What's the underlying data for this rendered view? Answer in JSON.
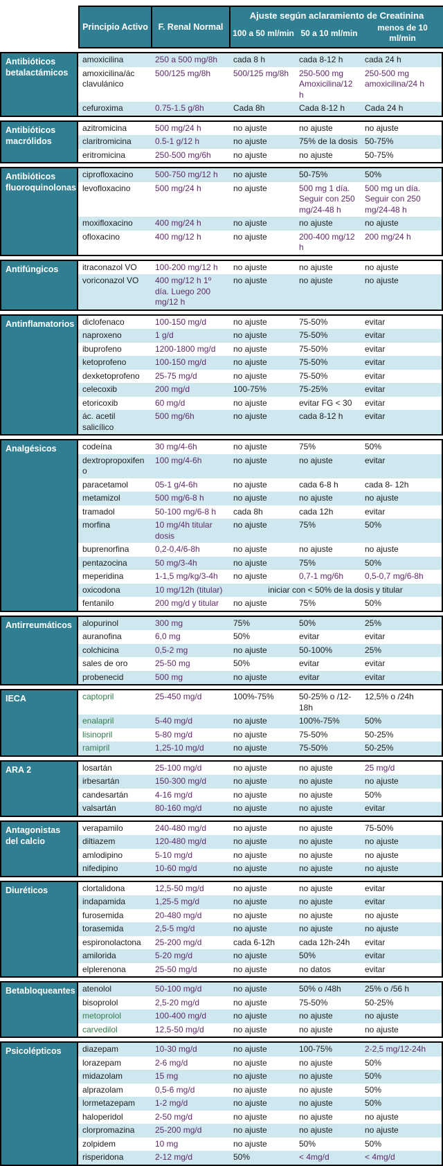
{
  "colors": {
    "teal": "#2f7e91",
    "stripe_blue": "#cfe8f0",
    "dose_text": "#5e2a68",
    "green_text": "#337a4d",
    "border": "#000000"
  },
  "header": {
    "principio": "Principio Activo",
    "renal": "F. Renal Normal",
    "ajuste_title": "Ajuste según aclaramiento de Creatinina",
    "sub_cols": [
      "100 a 50 ml/min",
      "50 a 10 ml/min",
      "menos de 10 ml/min"
    ]
  },
  "groups": [
    {
      "label": "Antibióticos betalactámicos",
      "first_row_shaded": true,
      "rows": [
        {
          "name": "amoxicilina",
          "renal": "250 a 500 mg/8h",
          "c1": "cada 8 h",
          "c2": "cada 8-12 h",
          "c3": "cada 24 h"
        },
        {
          "name": "amoxicilina/ác clavulánico",
          "renal": "500/125 mg/8h",
          "c1": "500/125 mg/8h",
          "c2": "250-500 mg Amoxicilina/12 h",
          "c3": "250-500 mg amoxicilina/24 h"
        },
        {
          "name": "cefuroxima",
          "renal": "0.75-1.5 g/8h",
          "c1": "Cada 8h",
          "c2": "Cada 8-12 h",
          "c3": "Cada 24 h"
        }
      ]
    },
    {
      "label": "Antibióticos macrólidos",
      "first_row_shaded": false,
      "rows": [
        {
          "name": "azitromicina",
          "renal": "500 mg/24 h",
          "c1": "no ajuste",
          "c2": "no ajuste",
          "c3": "no ajuste"
        },
        {
          "name": "claritromicina",
          "renal": "0.5-1 g/12 h",
          "c1": "no ajuste",
          "c2": "75% de la dosis",
          "c3": "50-75%"
        },
        {
          "name": "eritromicina",
          "renal": "250-500 mg/6h",
          "c1": "no ajuste",
          "c2": "no ajuste",
          "c3": "50-75%"
        }
      ]
    },
    {
      "label": "Antibióticos fluoroquinolonas",
      "first_row_shaded": true,
      "rows": [
        {
          "name": "ciprofloxacino",
          "renal": "500-750 mg/12 h",
          "c1": "no ajuste",
          "c2": "50-75%",
          "c3": "50%"
        },
        {
          "name": "levofloxacino",
          "renal": "500 mg/24 h",
          "c1": "no ajuste",
          "c2": "500 mg 1 día. Seguir con 250 mg/24-48 h",
          "c3": "500 mg un día. Seguir con 250 mg/24-48 h"
        },
        {
          "name": "moxifloxacino",
          "renal": "400 mg/24 h",
          "c1": "no ajuste",
          "c2": "no ajuste",
          "c3": "no ajuste"
        },
        {
          "name": "ofloxacino",
          "renal": "400 mg/12 h",
          "c1": "no ajuste",
          "c2": "200-400 mg/12 h",
          "c3": "200 mg/24 h"
        }
      ]
    },
    {
      "label": "Antifúngicos",
      "first_row_shaded": false,
      "rows": [
        {
          "name": "itraconazol VO",
          "renal": "100-200 mg/12 h",
          "c1": "no ajuste",
          "c2": "no ajuste",
          "c3": "no ajuste"
        },
        {
          "name": "voriconazol VO",
          "renal": "400 mg/12 h 1º día. Luego 200 mg/12 h",
          "c1": "no ajuste",
          "c2": "no ajuste",
          "c3": "no ajuste"
        }
      ]
    },
    {
      "label": "Antinflamatorios",
      "first_row_shaded": false,
      "rows": [
        {
          "name": "diclofenaco",
          "renal": "100-150 mg/d",
          "c1": "no ajuste",
          "c2": "75-50%",
          "c3": "evitar"
        },
        {
          "name": "naproxeno",
          "renal": "1 g/d",
          "c1": "no ajuste",
          "c2": "75-50%",
          "c3": "evitar"
        },
        {
          "name": "ibuprofeno",
          "renal": "1200-1800 mg/d",
          "c1": "no ajuste",
          "c2": "75-50%",
          "c3": "evitar"
        },
        {
          "name": "ketoprofeno",
          "renal": "100-150 mg/d",
          "c1": "no ajuste",
          "c2": "75-50%",
          "c3": "evitar"
        },
        {
          "name": "dexketoprofeno",
          "renal": "25-75 mg/d",
          "c1": "no ajuste",
          "c2": "75-50%",
          "c3": "evitar"
        },
        {
          "name": "celecoxib",
          "renal": "200 mg/d",
          "c1": "100-75%",
          "c2": "75-25%",
          "c3": "evitar"
        },
        {
          "name": "etoricoxib",
          "renal": "60 mg/d",
          "c1": "no ajuste",
          "c2": "evitar FG < 30",
          "c3": "evitar"
        },
        {
          "name": "ác. acetil salicílico",
          "renal": "500 mg/6h",
          "c1": "no ajuste",
          "c2": "cada 8-12 h",
          "c3": "evitar"
        }
      ]
    },
    {
      "label": "Analgésicos",
      "first_row_shaded": false,
      "rows": [
        {
          "name": "codeína",
          "renal": "30 mg/4-6h",
          "c1": "no ajuste",
          "c2": "75%",
          "c3": "50%"
        },
        {
          "name": "dextropropoxifeno",
          "renal": "100 mg/4-6h",
          "c1": "no ajuste",
          "c2": "no ajuste",
          "c3": "evitar"
        },
        {
          "name": "paracetamol",
          "renal": "05-1 g/4-6h",
          "c1": "no ajuste",
          "c2": "cada 6-8 h",
          "c3": "cada 8- 12h"
        },
        {
          "name": "metamizol",
          "renal": "500 mg/6-8 h",
          "c1": "no ajuste",
          "c2": "no ajuste",
          "c3": "no ajuste"
        },
        {
          "name": "tramadol",
          "renal": "50-100 mg/6-8 h",
          "c1": "cada 8h",
          "c2": "cada 12h",
          "c3": "evitar"
        },
        {
          "name": "morfina",
          "renal": "10 mg/4h titular dosis",
          "c1": "no ajuste",
          "c2": "75%",
          "c3": "50%"
        },
        {
          "name": "buprenorfina",
          "renal": "0,2-0,4/6-8h",
          "c1": "no ajuste",
          "c2": "no ajuste",
          "c3": "no ajuste"
        },
        {
          "name": "pentazocina",
          "renal": "50 mg/3-4h",
          "c1": "no ajuste",
          "c2": "75%",
          "c3": "50%"
        },
        {
          "name": "meperidina",
          "renal": "1-1,5 mg/kg/3-4h",
          "c1": "no ajuste",
          "c2": "0,7-1 mg/6h",
          "c3": "0,5-0,7 mg/6-8h"
        },
        {
          "name": "oxicodona",
          "renal": "10 mg/12h (titular)",
          "span": "iniciar con < 50% de la dosis y titular"
        },
        {
          "name": "fentanilo",
          "renal": "200 mg/d y titular",
          "c1": "no ajuste",
          "c2": "75%",
          "c3": "50%"
        }
      ]
    },
    {
      "label": "Antirreumáticos",
      "first_row_shaded": true,
      "rows": [
        {
          "name": "alopurinol",
          "renal": "300 mg",
          "c1": "75%",
          "c2": "50%",
          "c3": "25%"
        },
        {
          "name": "auranofina",
          "renal": "6,0 mg",
          "c1": "50%",
          "c2": "evitar",
          "c3": "evitar"
        },
        {
          "name": "colchicina",
          "renal": "0,5-2 mg",
          "c1": "no ajuste",
          "c2": "50-100%",
          "c3": "25%"
        },
        {
          "name": "sales de oro",
          "renal": "25-50 mg",
          "c1": "50%",
          "c2": "evitar",
          "c3": "evitar"
        },
        {
          "name": "probenecid",
          "renal": "500 mg",
          "c1": "no ajuste",
          "c2": "evitar",
          "c3": "evitar"
        }
      ]
    },
    {
      "label": "IECA",
      "first_row_shaded": false,
      "rows": [
        {
          "name": "captopril",
          "name_green": true,
          "renal": "25-450 mg/d",
          "c1": "100%-75%",
          "c2": "50-25% o /12-18h",
          "c3": "12,5% o /24h"
        },
        {
          "name": "enalapril",
          "name_green": true,
          "renal": "5-40 mg/d",
          "c1": "no ajuste",
          "c2": "100%-75%",
          "c3": "50%"
        },
        {
          "name": "lisinopril",
          "name_green": true,
          "renal": "5-80 mg/d",
          "c1": "no ajuste",
          "c2": "75-50%",
          "c3": "50-25%"
        },
        {
          "name": "ramipril",
          "name_green": true,
          "renal": "1,25-10 mg/d",
          "c1": "no ajuste",
          "c2": "75-50%",
          "c3": "50-25%"
        }
      ]
    },
    {
      "label": "ARA 2",
      "first_row_shaded": false,
      "rows": [
        {
          "name": "losartán",
          "renal": "25-100 mg/d",
          "c1": "no ajuste",
          "c2": "no ajuste",
          "c3": "25 mg/d"
        },
        {
          "name": "irbesartán",
          "renal": "150-300 mg/d",
          "c1": "no ajuste",
          "c2": "no ajuste",
          "c3": "no ajuste"
        },
        {
          "name": "candesartán",
          "renal": "4-16 mg/d",
          "c1": "no ajuste",
          "c2": "no ajuste",
          "c3": "50%"
        },
        {
          "name": "valsartán",
          "renal": "80-160 mg/d",
          "c1": "no ajuste",
          "c2": "no ajuste",
          "c3": "evitar"
        }
      ]
    },
    {
      "label": "Antagonistas del calcio",
      "first_row_shaded": false,
      "rows": [
        {
          "name": "verapamilo",
          "renal": "240-480 mg/d",
          "c1": "no ajuste",
          "c2": "no ajuste",
          "c3": "75-50%"
        },
        {
          "name": "diltiazem",
          "renal": "120-480 mg/d",
          "c1": "no ajuste",
          "c2": "no ajuste",
          "c3": "no ajuste"
        },
        {
          "name": "amlodipino",
          "renal": "5-10 mg/d",
          "c1": "no ajuste",
          "c2": "no ajuste",
          "c3": "no ajuste"
        },
        {
          "name": "nifedipino",
          "renal": "10-60 mg/d",
          "c1": "no ajuste",
          "c2": "no ajuste",
          "c3": "no ajuste"
        }
      ]
    },
    {
      "label": "Diuréticos",
      "first_row_shaded": false,
      "rows": [
        {
          "name": "clortalidona",
          "renal": "12,5-50 mg/d",
          "c1": "no ajuste",
          "c2": "no ajuste",
          "c3": "evitar"
        },
        {
          "name": "indapamida",
          "renal": "1,25-5 mg/d",
          "c1": "no ajuste",
          "c2": "no ajuste",
          "c3": "evitar"
        },
        {
          "name": "furosemida",
          "renal": "20-480 mg/d",
          "c1": "no ajuste",
          "c2": "no ajuste",
          "c3": "no ajuste"
        },
        {
          "name": "torasemida",
          "renal": "2,5-5 mg/d",
          "c1": "no ajuste",
          "c2": "no ajuste",
          "c3": "no ajuste"
        },
        {
          "name": "espironolactona",
          "renal": "25-200 mg/d",
          "c1": "cada 6-12h",
          "c2": "cada 12h-24h",
          "c3": "evitar"
        },
        {
          "name": "amilorida",
          "renal": "5-20 mg/d",
          "c1": "no ajuste",
          "c2": "50%",
          "c3": "evitar"
        },
        {
          "name": "elplerenona",
          "renal": "25-50 mg/d",
          "c1": "no ajuste",
          "c2": "no datos",
          "c3": "evitar"
        }
      ]
    },
    {
      "label": "Betabloqueantes",
      "first_row_shaded": true,
      "rows": [
        {
          "name": "atenolol",
          "renal": "50-100 mg/d",
          "c1": "no ajuste",
          "c2": "50% o /48h",
          "c3": "25% o /56 h"
        },
        {
          "name": "bisoprolol",
          "renal": "2,5-20 mg/d",
          "c1": "no ajuste",
          "c2": "75-50%",
          "c3": "50-25%"
        },
        {
          "name": "metoprolol",
          "name_green": true,
          "renal": "100-400 mg/d",
          "c1": "no ajuste",
          "c2": "no ajuste",
          "c3": "no ajuste"
        },
        {
          "name": "carvedilol",
          "name_green": true,
          "renal": "12,5-50 mg/d",
          "c1": "no ajuste",
          "c2": "no ajuste",
          "c3": "no ajuste"
        }
      ]
    },
    {
      "label": "Psicolépticos",
      "first_row_shaded": true,
      "rows": [
        {
          "name": "diazepam",
          "renal": "10-30 mg/d",
          "c1": "no ajuste",
          "c2": "100-75%",
          "c3": "2-2,5 mg/12-24h"
        },
        {
          "name": "lorazepam",
          "renal": "2-6 mg/d",
          "c1": "no ajuste",
          "c2": "no ajuste",
          "c3": "50%"
        },
        {
          "name": "midazolam",
          "renal": "15 mg",
          "c1": "no ajuste",
          "c2": "no ajuste",
          "c3": "50%"
        },
        {
          "name": "alprazolam",
          "renal": "0,5-6 mg/d",
          "c1": "no ajuste",
          "c2": "no ajuste",
          "c3": "50%"
        },
        {
          "name": "lormetazepam",
          "renal": "1-2 mg/d",
          "c1": "no ajuste",
          "c2": "no ajuste",
          "c3": "50%"
        },
        {
          "name": "haloperidol",
          "renal": "2-50 mg/d",
          "c1": "no ajuste",
          "c2": "no ajuste",
          "c3": "no ajuste"
        },
        {
          "name": "clorpromazina",
          "renal": "25-200 mg/d",
          "c1": "no ajuste",
          "c2": "no ajuste",
          "c3": "no ajuste"
        },
        {
          "name": "zolpidem",
          "renal": "10 mg",
          "c1": "no ajuste",
          "c2": "50%",
          "c3": "50%"
        },
        {
          "name": "risperidona",
          "renal": "2-12 mg/d",
          "c1": "50%",
          "c2": "< 4mg/d",
          "c3": "< 4mg/d"
        }
      ]
    }
  ]
}
